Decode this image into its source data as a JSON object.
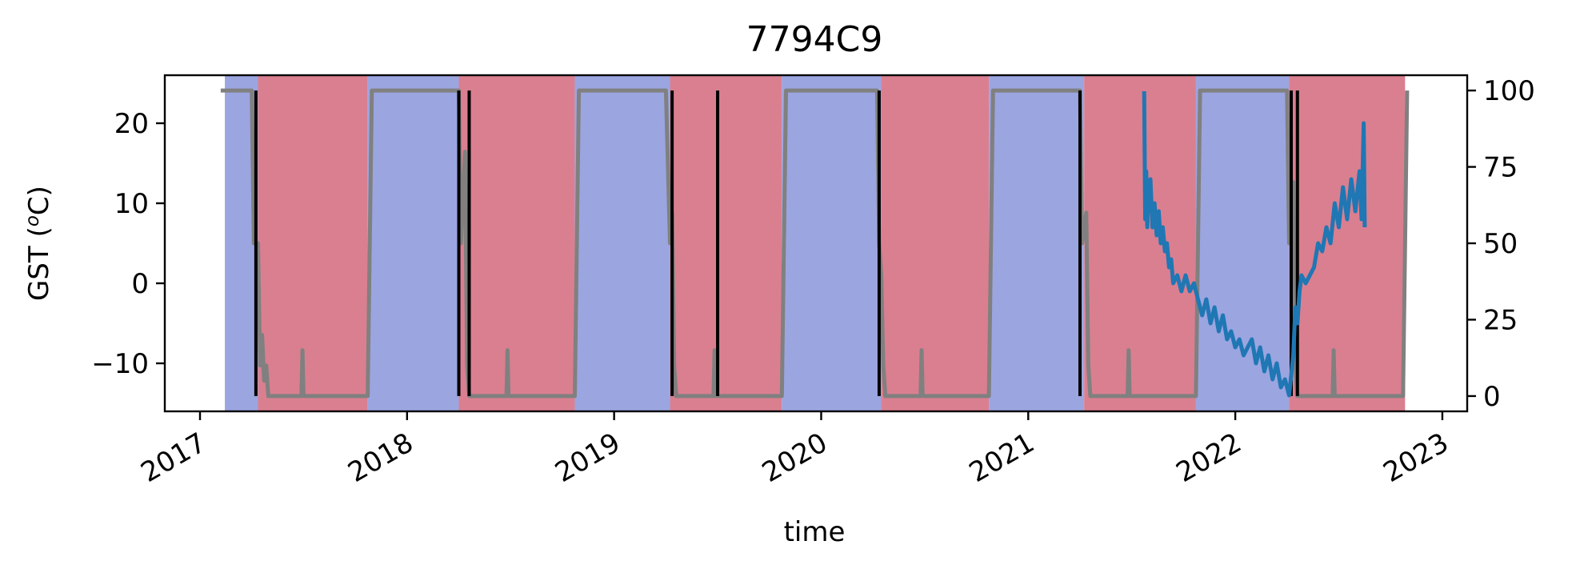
{
  "chart_data": {
    "type": "line",
    "title": "7794C9",
    "xlabel": "time",
    "ylabel_main": "GST (",
    "ylabel_unit_sup": "o",
    "ylabel_unit": "C)",
    "y_left_ticks": [
      "20",
      "10",
      "0",
      "−10"
    ],
    "y_left_tick_values": [
      20,
      10,
      0,
      -10
    ],
    "y_left_range": [
      -16,
      26
    ],
    "y_right_ticks": [
      "100",
      "75",
      "50",
      "25",
      "0"
    ],
    "y_right_tick_values": [
      100,
      75,
      50,
      25,
      0
    ],
    "y_right_range": [
      -5,
      105
    ],
    "x_ticks": [
      "2017",
      "2018",
      "2019",
      "2020",
      "2021",
      "2022",
      "2023"
    ],
    "x_tick_values": [
      2017,
      2018,
      2019,
      2020,
      2021,
      2022,
      2023
    ],
    "x_range": [
      2016.83,
      2023.12
    ],
    "colors": {
      "frozen": "#9ba5e0",
      "thawed": "#da7f90",
      "gst": "#1f77b4",
      "transition": "#000000",
      "fraction": "#808080"
    },
    "season_bands": [
      {
        "start": 2017.12,
        "end": 2017.28,
        "state": "frozen"
      },
      {
        "start": 2017.28,
        "end": 2017.81,
        "state": "thawed"
      },
      {
        "start": 2017.81,
        "end": 2018.25,
        "state": "frozen"
      },
      {
        "start": 2018.25,
        "end": 2018.81,
        "state": "thawed"
      },
      {
        "start": 2018.81,
        "end": 2019.27,
        "state": "frozen"
      },
      {
        "start": 2019.27,
        "end": 2019.81,
        "state": "thawed"
      },
      {
        "start": 2019.81,
        "end": 2020.29,
        "state": "frozen"
      },
      {
        "start": 2020.29,
        "end": 2020.81,
        "state": "thawed"
      },
      {
        "start": 2020.81,
        "end": 2021.27,
        "state": "frozen"
      },
      {
        "start": 2021.27,
        "end": 2021.81,
        "state": "thawed"
      },
      {
        "start": 2021.81,
        "end": 2022.26,
        "state": "frozen"
      },
      {
        "start": 2022.26,
        "end": 2022.82,
        "state": "thawed"
      }
    ],
    "transition_lines": [
      2017.27,
      2018.25,
      2018.3,
      2019.28,
      2019.5,
      2020.28,
      2021.25,
      2022.27,
      2022.3
    ],
    "fraction_series": {
      "name": "",
      "x": [
        2017.1,
        2017.25,
        2017.26,
        2017.28,
        2017.29,
        2017.3,
        2017.31,
        2017.32,
        2017.33,
        2017.49,
        2017.495,
        2017.5,
        2017.81,
        2017.83,
        2018.25,
        2018.26,
        2018.28,
        2018.29,
        2018.3,
        2018.48,
        2018.485,
        2018.49,
        2018.81,
        2018.83,
        2019.25,
        2019.27,
        2019.28,
        2019.29,
        2019.3,
        2019.48,
        2019.485,
        2019.49,
        2019.81,
        2019.83,
        2020.27,
        2020.28,
        2020.29,
        2020.3,
        2020.31,
        2020.48,
        2020.485,
        2020.49,
        2020.81,
        2020.83,
        2021.25,
        2021.26,
        2021.28,
        2021.29,
        2021.3,
        2021.48,
        2021.485,
        2021.49,
        2021.81,
        2021.83,
        2022.25,
        2022.26,
        2022.28,
        2022.29,
        2022.3,
        2022.47,
        2022.475,
        2022.48,
        2022.81,
        2022.83
      ],
      "y": [
        100,
        100,
        50,
        50,
        10,
        20,
        5,
        10,
        0,
        0,
        15,
        0,
        0,
        100,
        100,
        50,
        80,
        10,
        0,
        0,
        15,
        0,
        0,
        100,
        100,
        50,
        60,
        10,
        0,
        0,
        15,
        0,
        0,
        100,
        100,
        50,
        40,
        10,
        0,
        0,
        15,
        0,
        0,
        100,
        100,
        50,
        60,
        10,
        0,
        0,
        15,
        0,
        0,
        100,
        100,
        50,
        70,
        10,
        0,
        0,
        15,
        0,
        0,
        100
      ]
    },
    "gst_series": {
      "name": "",
      "x": [
        2021.56,
        2021.565,
        2021.57,
        2021.575,
        2021.58,
        2021.585,
        2021.59,
        2021.6,
        2021.61,
        2021.62,
        2021.63,
        2021.64,
        2021.65,
        2021.66,
        2021.67,
        2021.68,
        2021.69,
        2021.7,
        2021.72,
        2021.74,
        2021.76,
        2021.78,
        2021.8,
        2021.82,
        2021.84,
        2021.86,
        2021.88,
        2021.9,
        2021.92,
        2021.94,
        2021.96,
        2021.98,
        2022.0,
        2022.02,
        2022.04,
        2022.06,
        2022.08,
        2022.1,
        2022.12,
        2022.14,
        2022.16,
        2022.18,
        2022.2,
        2022.22,
        2022.24,
        2022.26,
        2022.28,
        2022.29,
        2022.3,
        2022.31,
        2022.32,
        2022.34,
        2022.36,
        2022.38,
        2022.4,
        2022.42,
        2022.44,
        2022.46,
        2022.48,
        2022.5,
        2022.52,
        2022.54,
        2022.56,
        2022.58,
        2022.6,
        2022.61,
        2022.62,
        2022.625
      ],
      "y": [
        24,
        8,
        14,
        7,
        12,
        9,
        13,
        7,
        10,
        6,
        9,
        5,
        7,
        4,
        5,
        2,
        3,
        0,
        1,
        -1,
        1,
        -1,
        0,
        -2,
        -4,
        -2,
        -5,
        -3,
        -6,
        -4,
        -7,
        -6,
        -8,
        -7,
        -9,
        -8,
        -7,
        -10,
        -8,
        -11,
        -9,
        -12,
        -10,
        -13,
        -12,
        -14,
        -9,
        -3,
        -5,
        -1,
        1,
        0,
        1,
        2,
        5,
        4,
        7,
        5,
        10,
        7,
        12,
        8,
        13,
        9,
        14,
        8,
        20,
        7
      ]
    }
  }
}
